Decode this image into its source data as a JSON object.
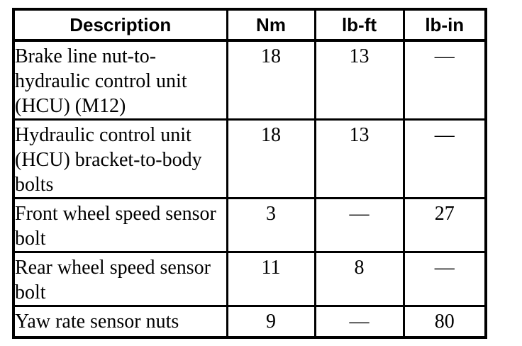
{
  "table": {
    "headers": [
      "Description",
      "Nm",
      "lb-ft",
      "lb-in"
    ],
    "rows": [
      {
        "description": "Brake line nut-to-hydraulic control unit (HCU) (M12)",
        "nm": "18",
        "lb_ft": "13",
        "lb_in": "—"
      },
      {
        "description": "Hydraulic control unit (HCU) bracket-to-body bolts",
        "nm": "18",
        "lb_ft": "13",
        "lb_in": "—"
      },
      {
        "description": "Front wheel speed sensor bolt",
        "nm": "3",
        "lb_ft": "—",
        "lb_in": "27"
      },
      {
        "description": "Rear wheel speed sensor bolt",
        "nm": "11",
        "lb_ft": "8",
        "lb_in": "—"
      },
      {
        "description": "Yaw rate sensor nuts",
        "nm": "9",
        "lb_ft": "—",
        "lb_in": "80"
      }
    ],
    "border_color": "#000000",
    "background_color": "#ffffff"
  }
}
